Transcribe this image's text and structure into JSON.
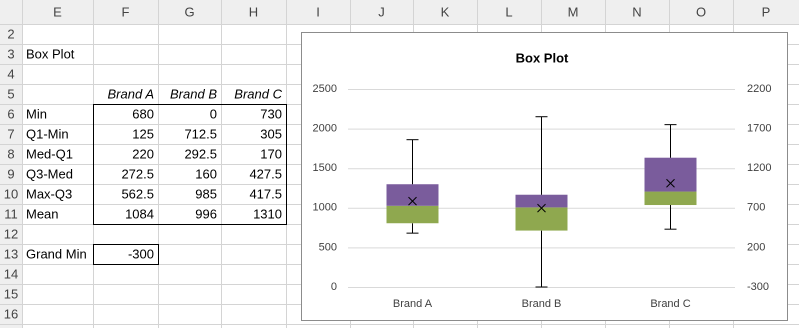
{
  "sheet": {
    "columns": [
      "E",
      "F",
      "G",
      "H",
      "I",
      "J",
      "K",
      "L",
      "M",
      "N",
      "O",
      "P"
    ],
    "rows": [
      2,
      3,
      4,
      5,
      6,
      7,
      8,
      9,
      10,
      11,
      12,
      13,
      14,
      15,
      16
    ],
    "title": "Box Plot",
    "table": {
      "header": [
        "Brand A",
        "Brand B",
        "Brand C"
      ],
      "rows": [
        {
          "label": "Min",
          "values": [
            680,
            0,
            730
          ]
        },
        {
          "label": "Q1-Min",
          "values": [
            125,
            712.5,
            305
          ]
        },
        {
          "label": "Med-Q1",
          "values": [
            220,
            292.5,
            170
          ]
        },
        {
          "label": "Q3-Med",
          "values": [
            272.5,
            160,
            427.5
          ]
        },
        {
          "label": "Max-Q3",
          "values": [
            562.5,
            985,
            417.5
          ]
        },
        {
          "label": "Mean",
          "values": [
            1084,
            996,
            1310
          ]
        }
      ]
    },
    "grand_min": {
      "label": "Grand Min",
      "value": -300
    }
  },
  "chart_data": {
    "type": "box",
    "title": "Box Plot",
    "categories": [
      "Brand A",
      "Brand B",
      "Brand C"
    ],
    "series": [
      {
        "name": "Min",
        "values": [
          680,
          0,
          730
        ]
      },
      {
        "name": "Q1-Min",
        "values": [
          125,
          712.5,
          305
        ]
      },
      {
        "name": "Med-Q1",
        "color": "#8fa84f",
        "values": [
          220,
          292.5,
          170
        ]
      },
      {
        "name": "Q3-Med",
        "color": "#7a5c9c",
        "values": [
          272.5,
          160,
          427.5
        ]
      },
      {
        "name": "Max-Q3",
        "values": [
          562.5,
          985,
          417.5
        ]
      },
      {
        "name": "Mean",
        "values": [
          1084,
          996,
          1310
        ]
      }
    ],
    "ylim": [
      0,
      2500
    ],
    "yticks": [
      0,
      500,
      1000,
      1500,
      2000,
      2500
    ],
    "y2lim": [
      -300,
      2200
    ],
    "y2ticks": [
      -300,
      200,
      700,
      1200,
      1700,
      2200
    ],
    "grid": true
  }
}
